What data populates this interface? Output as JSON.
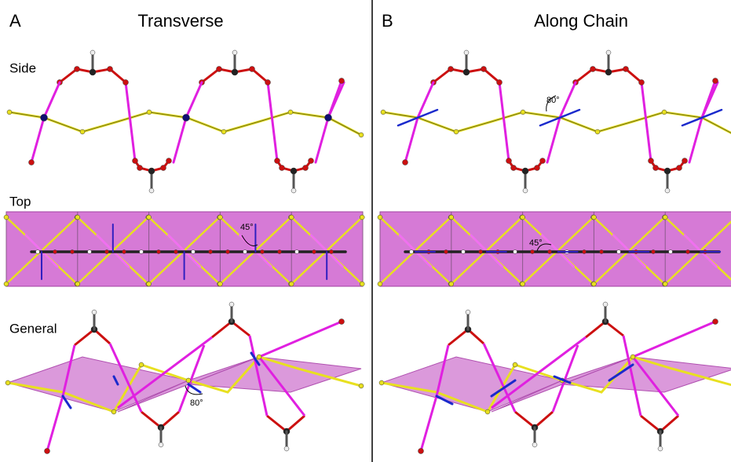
{
  "panels": [
    {
      "letter": "A",
      "title": "Transverse",
      "side_label": "Side",
      "top_label": "Top",
      "general_label": "General",
      "annotations": [
        "45°",
        "80°"
      ]
    },
    {
      "letter": "B",
      "title": "Along Chain",
      "annotations": [
        "80°",
        "45°"
      ]
    }
  ]
}
